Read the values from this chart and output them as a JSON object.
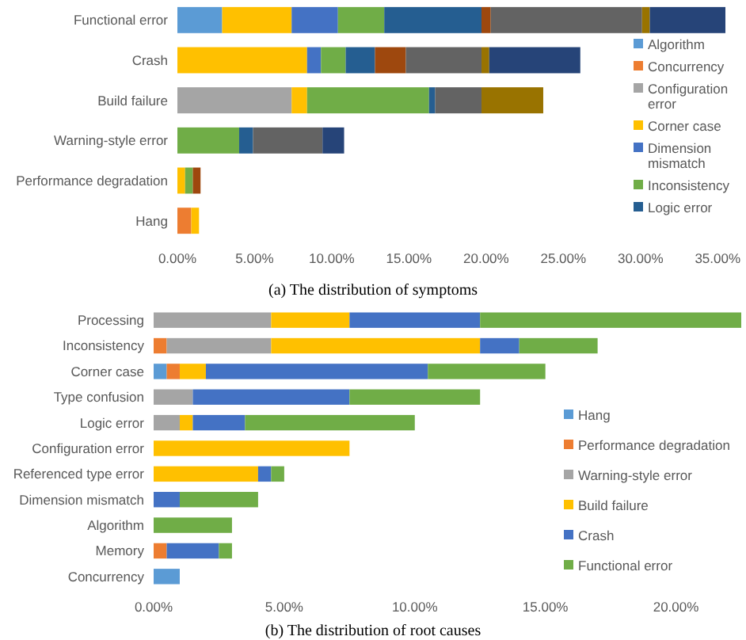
{
  "chart_data": [
    {
      "type": "bar",
      "orientation": "horizontal",
      "stacked": true,
      "title": "(a) The distribution of symptoms",
      "categories": [
        "Functional error",
        "Crash",
        "Build failure",
        "Warning-style error",
        "Performance degradation",
        "Hang"
      ],
      "xlim": [
        0,
        35.5
      ],
      "xticks": [
        {
          "value": 0,
          "label": "0.00%"
        },
        {
          "value": 5,
          "label": "5.00%"
        },
        {
          "value": 10,
          "label": "10.00%"
        },
        {
          "value": 15,
          "label": "15.00%"
        },
        {
          "value": 20,
          "label": "20.00%"
        },
        {
          "value": 25,
          "label": "25.00%"
        },
        {
          "value": 30,
          "label": "30.00%"
        },
        {
          "value": 35,
          "label": "35.00%"
        }
      ],
      "grid": false,
      "legend": "right",
      "series": [
        {
          "name": "Algorithm",
          "color": "#5b9bd5",
          "values": [
            2.9,
            0,
            0,
            0,
            0,
            0
          ]
        },
        {
          "name": "Concurrency",
          "color": "#ed7d31",
          "values": [
            0,
            0,
            0,
            0,
            0,
            0.9
          ]
        },
        {
          "name": "Configuration error",
          "color": "#a5a5a5",
          "values": [
            0,
            0,
            7.4,
            0,
            0,
            0
          ]
        },
        {
          "name": "Corner case",
          "color": "#ffc000",
          "values": [
            4.5,
            8.4,
            1.0,
            0,
            0.5,
            0.5
          ]
        },
        {
          "name": "Dimension mismatch",
          "color": "#4472c4",
          "values": [
            3.0,
            0.9,
            0,
            0,
            0,
            0
          ]
        },
        {
          "name": "Inconsistency",
          "color": "#70ad47",
          "values": [
            3.0,
            1.6,
            7.9,
            4.0,
            0.5,
            0
          ]
        },
        {
          "name": "Logic error",
          "color": "#255e91",
          "values": [
            6.3,
            1.9,
            0.4,
            0.9,
            0,
            0
          ]
        },
        {
          "color": "#9e480e",
          "values": [
            0.6,
            2.0,
            0,
            0,
            0.5,
            0
          ]
        },
        {
          "color": "#636363",
          "values": [
            9.8,
            4.9,
            3.0,
            4.5,
            0,
            0
          ]
        },
        {
          "color": "#997300",
          "values": [
            0.5,
            0.5,
            4.0,
            0,
            0,
            0
          ]
        },
        {
          "color": "#264478",
          "values": [
            4.9,
            5.9,
            0,
            1.4,
            0,
            0
          ]
        }
      ]
    },
    {
      "type": "bar",
      "orientation": "horizontal",
      "stacked": true,
      "title": "(b) The distribution of root causes",
      "categories": [
        "Processing",
        "Inconsistency",
        "Corner case",
        "Type confusion",
        "Logic error",
        "Configuration error",
        "Referenced type error",
        "Dimension mismatch",
        "Algorithm",
        "Memory",
        "Concurrency"
      ],
      "xlim": [
        0,
        22.5
      ],
      "xticks": [
        {
          "value": 0,
          "label": "0.00%"
        },
        {
          "value": 5,
          "label": "5.00%"
        },
        {
          "value": 10,
          "label": "10.00%"
        },
        {
          "value": 15,
          "label": "15.00%"
        },
        {
          "value": 20,
          "label": "20.00%"
        }
      ],
      "grid": false,
      "legend": "right",
      "series": [
        {
          "name": "Hang",
          "color": "#5b9bd5",
          "values": [
            0,
            0,
            0.5,
            0,
            0,
            0,
            0,
            0,
            0,
            0,
            1.0
          ]
        },
        {
          "name": "Performance degradation",
          "color": "#ed7d31",
          "values": [
            0,
            0.5,
            0.5,
            0,
            0,
            0,
            0,
            0,
            0,
            0.5,
            0
          ]
        },
        {
          "name": "Warning-style error",
          "color": "#a5a5a5",
          "values": [
            4.5,
            4.0,
            0,
            1.5,
            1.0,
            0,
            0,
            0,
            0,
            0,
            0
          ]
        },
        {
          "name": "Build failure",
          "color": "#ffc000",
          "values": [
            3.0,
            8.0,
            1.0,
            0,
            0.5,
            7.5,
            4.0,
            0,
            0,
            0,
            0
          ]
        },
        {
          "name": "Crash",
          "color": "#4472c4",
          "values": [
            5.0,
            1.5,
            8.5,
            6.0,
            2.0,
            0,
            0.5,
            1.0,
            0,
            2.0,
            0
          ]
        },
        {
          "name": "Functional error",
          "color": "#70ad47",
          "values": [
            10.0,
            3.0,
            4.5,
            5.0,
            6.5,
            0,
            0.5,
            3.0,
            3.0,
            0.5,
            0
          ]
        }
      ]
    }
  ]
}
